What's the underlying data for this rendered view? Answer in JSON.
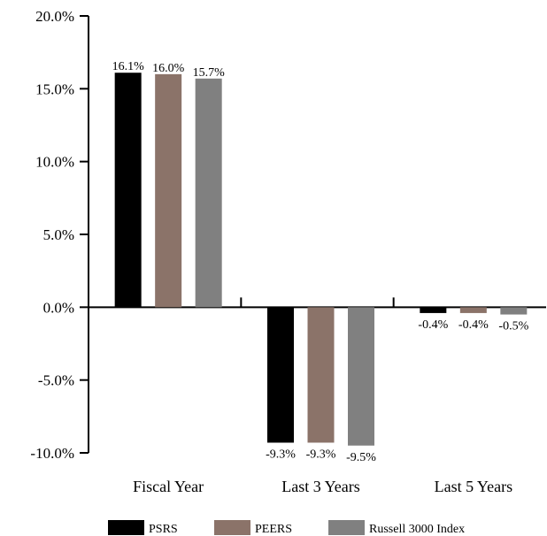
{
  "chart_data": {
    "type": "bar",
    "categories": [
      "Fiscal Year",
      "Last 3 Years",
      "Last 5 Years"
    ],
    "series": [
      {
        "name": "PSRS",
        "color": "#000000",
        "values": [
          16.1,
          -9.3,
          -0.4
        ],
        "labels": [
          "16.1%",
          "-9.3%",
          "-0.4%"
        ]
      },
      {
        "name": "PEERS",
        "color": "#8b7369",
        "values": [
          16.0,
          -9.3,
          -0.4
        ],
        "labels": [
          "16.0%",
          "-9.3%",
          "-0.4%"
        ]
      },
      {
        "name": "Russell 3000 Index",
        "color": "#808080",
        "values": [
          15.7,
          -9.5,
          -0.5
        ],
        "labels": [
          "15.7%",
          "-9.5%",
          "-0.5%"
        ]
      }
    ],
    "ylim": [
      -10,
      20
    ],
    "yticks": [
      20,
      15,
      10,
      5,
      0,
      -5,
      -10
    ],
    "ytick_labels": [
      "20.0%",
      "15.0%",
      "10.0%",
      "5.0%",
      "0.0%",
      "-5.0%",
      "-10.0%"
    ],
    "title": "",
    "xlabel": "",
    "ylabel": "",
    "legend_position": "bottom",
    "grid": false
  }
}
